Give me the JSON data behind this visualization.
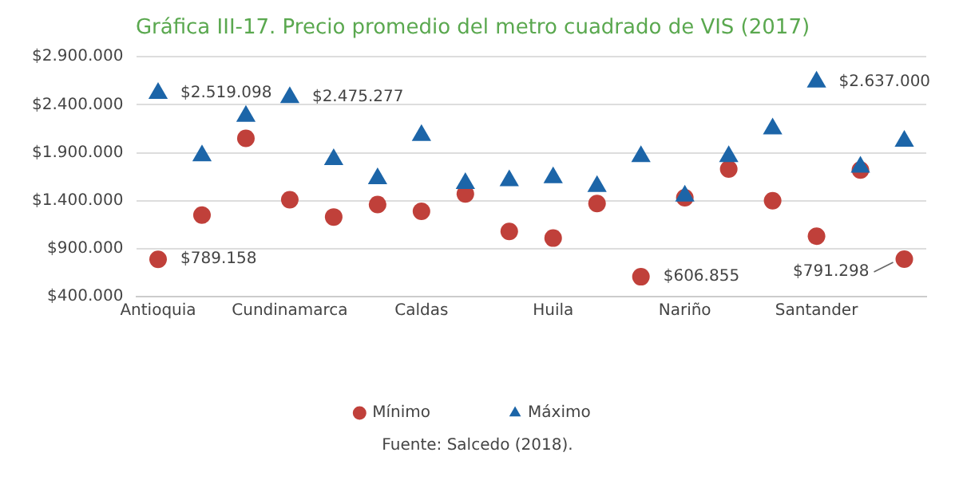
{
  "chart_data": {
    "type": "scatter",
    "title": "Gráfica III-17. Precio promedio del metro cuadrado de VIS (2017)",
    "categories": [
      "Antioquia",
      null,
      null,
      "Cundinamarca",
      null,
      null,
      "Caldas",
      null,
      null,
      "Huila",
      null,
      null,
      "Nariño",
      null,
      null,
      "Santander",
      null,
      null
    ],
    "series": [
      {
        "name": "Mínimo",
        "color": "#c0403a",
        "marker": "circle",
        "values": [
          789158,
          1250000,
          2050000,
          1410000,
          1230000,
          1360000,
          1290000,
          1470000,
          1080000,
          1010000,
          1370000,
          606855,
          1430000,
          1730000,
          1400000,
          1030000,
          1720000,
          791298
        ],
        "value_labels": [
          "$789.158",
          null,
          null,
          null,
          null,
          null,
          null,
          null,
          null,
          null,
          null,
          "$606.855",
          null,
          null,
          null,
          null,
          null,
          "$791.298"
        ]
      },
      {
        "name": "Máximo",
        "color": "#1c65a8",
        "marker": "triangle",
        "values": [
          2519098,
          1870000,
          2280000,
          2475277,
          1830000,
          1630000,
          2080000,
          1580000,
          1610000,
          1640000,
          1550000,
          1860000,
          1450000,
          1860000,
          2150000,
          2637000,
          1750000,
          2020000
        ],
        "value_labels": [
          "$2.519.098",
          null,
          null,
          "$2.475.277",
          null,
          null,
          null,
          null,
          null,
          null,
          null,
          null,
          null,
          null,
          null,
          "$2.637.000",
          null,
          null
        ]
      }
    ],
    "ylim": [
      400000,
      2900000
    ],
    "yticks": [
      {
        "value": 400000,
        "label": "$400.000"
      },
      {
        "value": 900000,
        "label": "$900.000"
      },
      {
        "value": 1400000,
        "label": "$1.400.000"
      },
      {
        "value": 1900000,
        "label": "$1.900.000"
      },
      {
        "value": 2400000,
        "label": "$2.400.000"
      },
      {
        "value": 2900000,
        "label": "$2.900.000"
      }
    ],
    "grid": "y",
    "legend": "bottom",
    "annotations": [
      "Fuente: Salcedo (2018)."
    ]
  }
}
